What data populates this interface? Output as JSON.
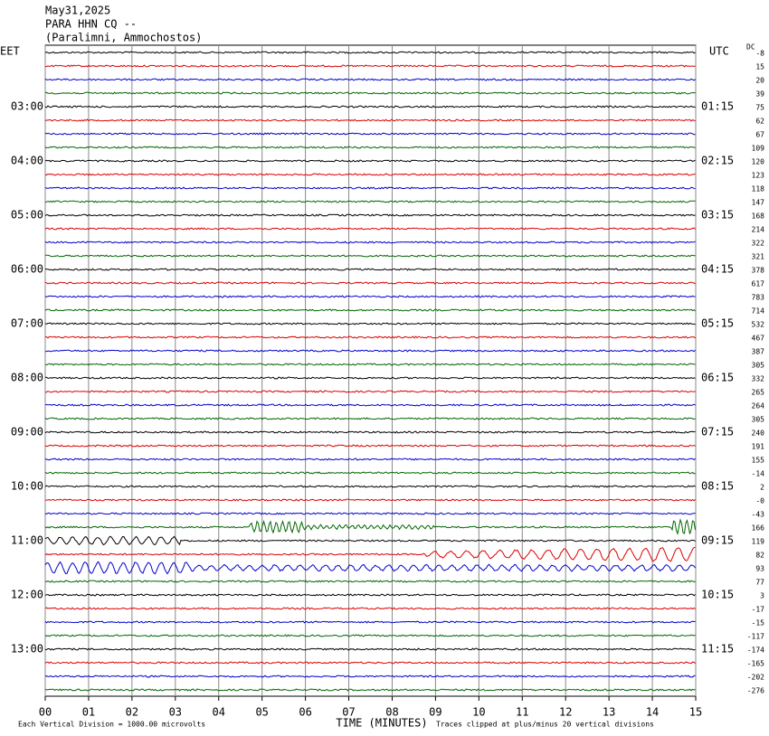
{
  "header": {
    "date": "May31,2025",
    "station": "PARA HHN CQ --",
    "location": "(Paralimni, Ammochostos)"
  },
  "left": {
    "corner": "EET",
    "times": [
      "03:00",
      "04:00",
      "05:00",
      "06:00",
      "07:00",
      "08:00",
      "09:00",
      "10:00",
      "11:00",
      "12:00",
      "13:00"
    ]
  },
  "right": {
    "corner": "UTC",
    "times": [
      "01:15",
      "02:15",
      "03:15",
      "04:15",
      "05:15",
      "06:15",
      "07:15",
      "08:15",
      "09:15",
      "10:15",
      "11:15"
    ]
  },
  "dc": {
    "label": "DC",
    "offsets": [
      "-8",
      "15",
      "20",
      "39",
      "75",
      "62",
      "67",
      "109",
      "120",
      "123",
      "118",
      "147",
      "168",
      "214",
      "322",
      "321",
      "378",
      "617",
      "783",
      "714",
      "532",
      "467",
      "387",
      "305",
      "332",
      "265",
      "264",
      "305",
      "240",
      "191",
      "155",
      "-14",
      "2",
      "-0",
      "-43",
      "166",
      "119",
      "82",
      "93",
      "77",
      "3",
      "-17",
      "-15",
      "-117",
      "-174",
      "-165",
      "-202",
      "-276"
    ]
  },
  "x_axis": {
    "ticks": [
      "00",
      "01",
      "02",
      "03",
      "04",
      "05",
      "06",
      "07",
      "08",
      "09",
      "10",
      "11",
      "12",
      "13",
      "14",
      "15"
    ],
    "title": "TIME (MINUTES)"
  },
  "footer": {
    "left": "Each Vertical Division = 1000.00 microvolts",
    "right": "Traces clipped at plus/minus 20 vertical divisions"
  }
}
